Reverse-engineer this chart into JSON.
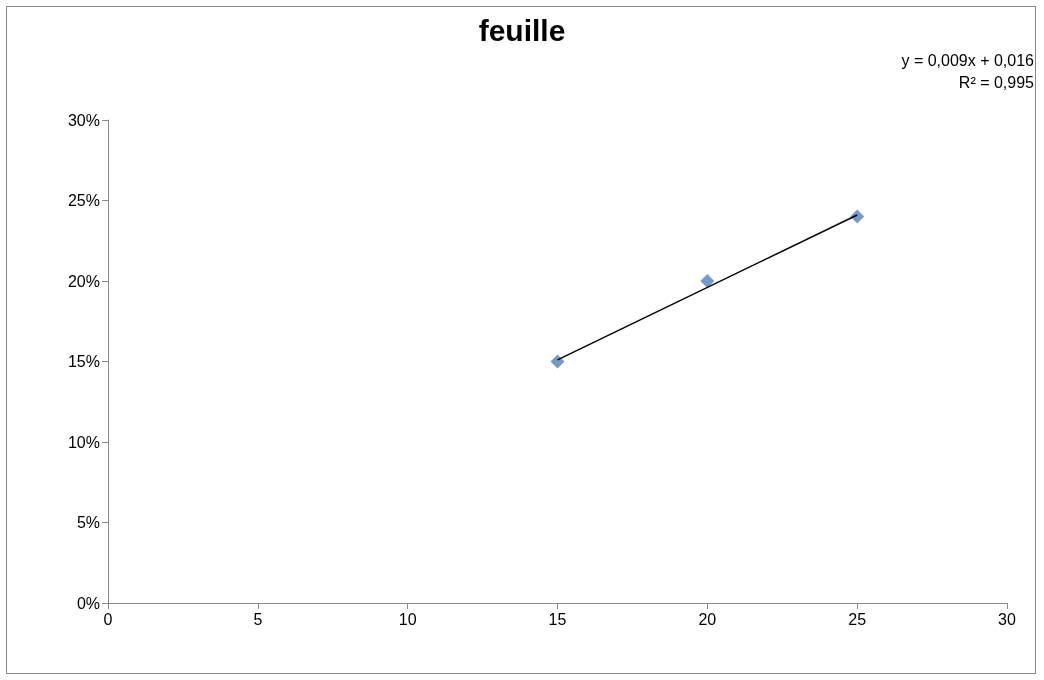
{
  "chart_data": {
    "type": "scatter",
    "title": "feuille",
    "annotations": [
      "y = 0,009x + 0,016",
      "R² = 0,995"
    ],
    "series": [
      {
        "color": "#4f81bd",
        "marker": "diamond",
        "x": [
          15,
          20,
          25
        ],
        "values": [
          15,
          20,
          24
        ]
      },
      {
        "type": "line",
        "color": "#000000",
        "marker": "none",
        "line_style": "solid",
        "x": [
          15,
          25
        ],
        "values": [
          15.1,
          24.1
        ]
      }
    ],
    "xlim": [
      0,
      30
    ],
    "xticks": [
      0,
      5,
      10,
      15,
      20,
      25,
      30
    ],
    "ylim": [
      0,
      30
    ],
    "yticks": [
      {
        "value": 0,
        "label": "0%"
      },
      {
        "value": 5,
        "label": "5%"
      },
      {
        "value": 10,
        "label": "10%"
      },
      {
        "value": 15,
        "label": "15%"
      },
      {
        "value": 20,
        "label": "20%"
      },
      {
        "value": 25,
        "label": "25%"
      },
      {
        "value": 30,
        "label": "30%"
      }
    ],
    "grid": false
  }
}
